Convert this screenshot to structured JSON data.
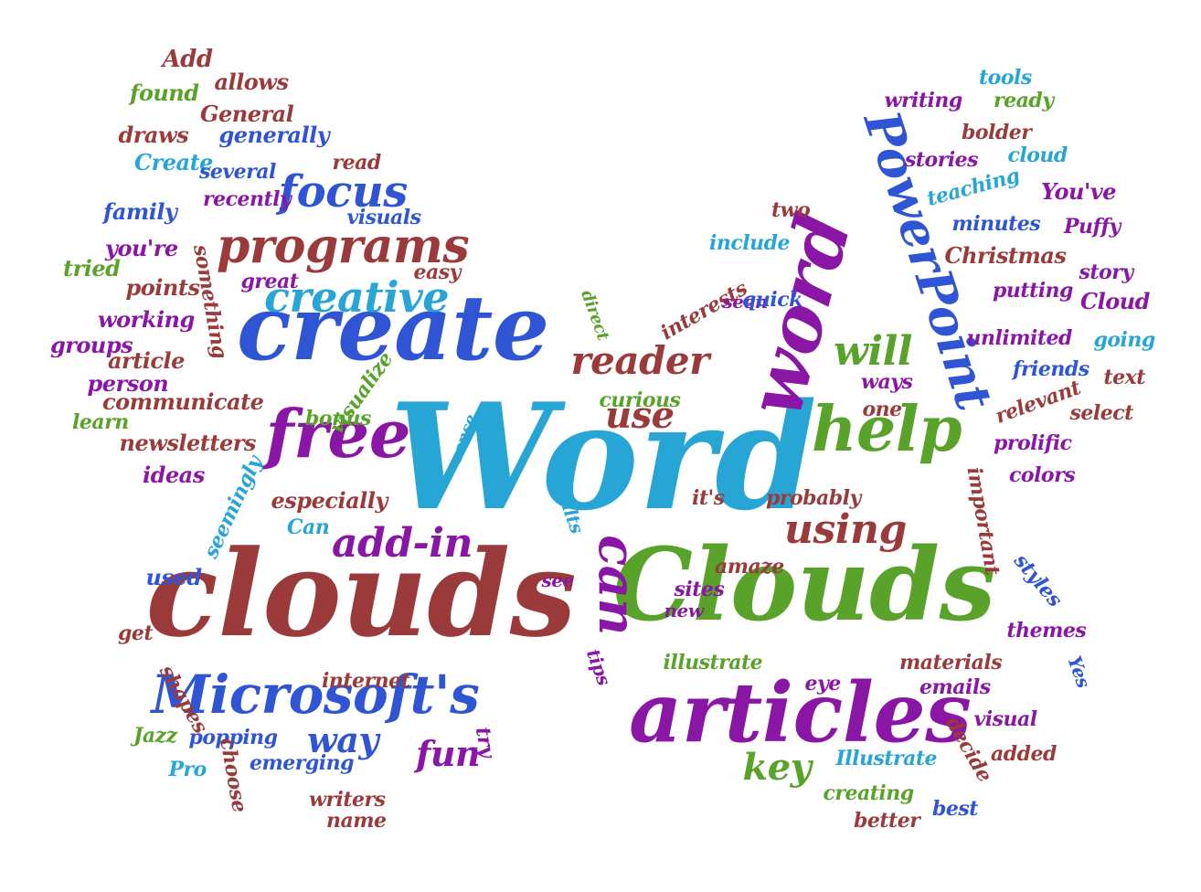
{
  "colors": {
    "maroon": "#9b3a3a",
    "blue": "#2f55d4",
    "purple": "#8a16a6",
    "cyan": "#27a6d6",
    "green": "#5aa32a"
  },
  "words": [
    {
      "text": "Word",
      "color": "cyan"
    },
    {
      "text": "clouds",
      "color": "maroon"
    },
    {
      "text": "Clouds",
      "color": "green"
    },
    {
      "text": "create",
      "color": "blue"
    },
    {
      "text": "articles",
      "color": "purple"
    },
    {
      "text": "word",
      "color": "purple"
    },
    {
      "text": "PowerPoint",
      "color": "blue"
    },
    {
      "text": "free",
      "color": "purple"
    },
    {
      "text": "help",
      "color": "green"
    },
    {
      "text": "Microsoft's",
      "color": "blue"
    },
    {
      "text": "can",
      "color": "purple"
    },
    {
      "text": "programs",
      "color": "maroon"
    },
    {
      "text": "creative",
      "color": "cyan"
    },
    {
      "text": "focus",
      "color": "blue"
    },
    {
      "text": "reader",
      "color": "maroon"
    },
    {
      "text": "will",
      "color": "green"
    },
    {
      "text": "add-in",
      "color": "purple"
    },
    {
      "text": "using",
      "color": "maroon"
    },
    {
      "text": "use",
      "color": "maroon"
    },
    {
      "text": "way",
      "color": "blue"
    },
    {
      "text": "fun",
      "color": "purple"
    },
    {
      "text": "key",
      "color": "green"
    },
    {
      "text": "Add",
      "color": "maroon"
    },
    {
      "text": "allows",
      "color": "maroon"
    },
    {
      "text": "found",
      "color": "green"
    },
    {
      "text": "General",
      "color": "maroon"
    },
    {
      "text": "draws",
      "color": "maroon"
    },
    {
      "text": "generally",
      "color": "blue"
    },
    {
      "text": "Create",
      "color": "cyan"
    },
    {
      "text": "read",
      "color": "maroon"
    },
    {
      "text": "several",
      "color": "blue"
    },
    {
      "text": "family",
      "color": "blue"
    },
    {
      "text": "recently",
      "color": "purple"
    },
    {
      "text": "visuals",
      "color": "blue"
    },
    {
      "text": "you're",
      "color": "purple"
    },
    {
      "text": "something",
      "color": "maroon"
    },
    {
      "text": "tried",
      "color": "green"
    },
    {
      "text": "great",
      "color": "purple"
    },
    {
      "text": "easy",
      "color": "maroon"
    },
    {
      "text": "points",
      "color": "maroon"
    },
    {
      "text": "working",
      "color": "purple"
    },
    {
      "text": "groups",
      "color": "purple"
    },
    {
      "text": "article",
      "color": "maroon"
    },
    {
      "text": "person",
      "color": "purple"
    },
    {
      "text": "communicate",
      "color": "maroon"
    },
    {
      "text": "learn",
      "color": "green"
    },
    {
      "text": "newsletters",
      "color": "maroon"
    },
    {
      "text": "bonus",
      "color": "green"
    },
    {
      "text": "visualize",
      "color": "green"
    },
    {
      "text": "ideas",
      "color": "purple"
    },
    {
      "text": "especially",
      "color": "maroon"
    },
    {
      "text": "seemingly",
      "color": "cyan"
    },
    {
      "text": "Can",
      "color": "cyan"
    },
    {
      "text": "used",
      "color": "blue"
    },
    {
      "text": "get",
      "color": "maroon"
    },
    {
      "text": "shapes",
      "color": "maroon"
    },
    {
      "text": "internet",
      "color": "maroon"
    },
    {
      "text": "Jazz",
      "color": "green"
    },
    {
      "text": "popping",
      "color": "blue"
    },
    {
      "text": "Pro",
      "color": "cyan"
    },
    {
      "text": "choose",
      "color": "maroon"
    },
    {
      "text": "emerging",
      "color": "blue"
    },
    {
      "text": "writers",
      "color": "maroon"
    },
    {
      "text": "name",
      "color": "maroon"
    },
    {
      "text": "try",
      "color": "purple"
    },
    {
      "text": "sense",
      "color": "cyan"
    },
    {
      "text": "results",
      "color": "cyan"
    },
    {
      "text": "see",
      "color": "purple"
    },
    {
      "text": "tips",
      "color": "purple"
    },
    {
      "text": "direct",
      "color": "green"
    },
    {
      "text": "interests",
      "color": "maroon"
    },
    {
      "text": "seen",
      "color": "purple"
    },
    {
      "text": "quick",
      "color": "blue"
    },
    {
      "text": "include",
      "color": "cyan"
    },
    {
      "text": "two",
      "color": "maroon"
    },
    {
      "text": "curious",
      "color": "green"
    },
    {
      "text": "it's",
      "color": "maroon"
    },
    {
      "text": "sites",
      "color": "purple"
    },
    {
      "text": "new",
      "color": "purple"
    },
    {
      "text": "amaze",
      "color": "maroon"
    },
    {
      "text": "illustrate",
      "color": "green"
    },
    {
      "text": "eye",
      "color": "purple"
    },
    {
      "text": "probably",
      "color": "maroon"
    },
    {
      "text": "one",
      "color": "maroon"
    },
    {
      "text": "ways",
      "color": "purple"
    },
    {
      "text": "tools",
      "color": "cyan"
    },
    {
      "text": "writing",
      "color": "purple"
    },
    {
      "text": "ready",
      "color": "green"
    },
    {
      "text": "bolder",
      "color": "maroon"
    },
    {
      "text": "stories",
      "color": "purple"
    },
    {
      "text": "cloud",
      "color": "cyan"
    },
    {
      "text": "teaching",
      "color": "cyan"
    },
    {
      "text": "You've",
      "color": "purple"
    },
    {
      "text": "minutes",
      "color": "blue"
    },
    {
      "text": "Puffy",
      "color": "purple"
    },
    {
      "text": "Christmas",
      "color": "maroon"
    },
    {
      "text": "story",
      "color": "purple"
    },
    {
      "text": "putting",
      "color": "purple"
    },
    {
      "text": "Cloud",
      "color": "purple"
    },
    {
      "text": "unlimited",
      "color": "purple"
    },
    {
      "text": "going",
      "color": "cyan"
    },
    {
      "text": "friends",
      "color": "blue"
    },
    {
      "text": "text",
      "color": "maroon"
    },
    {
      "text": "relevant",
      "color": "maroon"
    },
    {
      "text": "select",
      "color": "maroon"
    },
    {
      "text": "prolific",
      "color": "purple"
    },
    {
      "text": "important",
      "color": "maroon"
    },
    {
      "text": "colors",
      "color": "purple"
    },
    {
      "text": "styles",
      "color": "blue"
    },
    {
      "text": "themes",
      "color": "purple"
    },
    {
      "text": "Yes",
      "color": "blue"
    },
    {
      "text": "materials",
      "color": "maroon"
    },
    {
      "text": "emails",
      "color": "purple"
    },
    {
      "text": "visual",
      "color": "purple"
    },
    {
      "text": "decide",
      "color": "maroon"
    },
    {
      "text": "added",
      "color": "maroon"
    },
    {
      "text": "Illustrate",
      "color": "cyan"
    },
    {
      "text": "creating",
      "color": "green"
    },
    {
      "text": "best",
      "color": "blue"
    },
    {
      "text": "better",
      "color": "maroon"
    }
  ]
}
